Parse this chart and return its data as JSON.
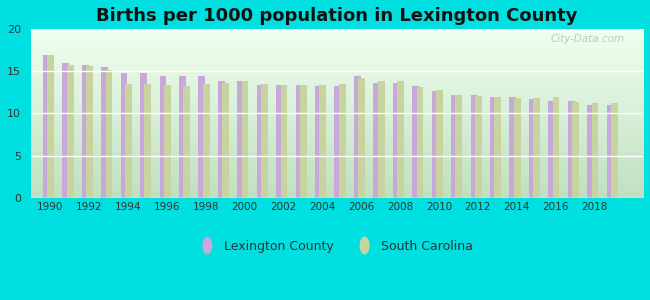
{
  "title": "Births per 1000 population in Lexington County",
  "years": [
    1990,
    1991,
    1992,
    1993,
    1994,
    1995,
    1996,
    1997,
    1998,
    1999,
    2000,
    2001,
    2002,
    2003,
    2004,
    2005,
    2006,
    2007,
    2008,
    2009,
    2010,
    2011,
    2012,
    2013,
    2014,
    2015,
    2016,
    2017,
    2018,
    2019
  ],
  "lexington": [
    17.0,
    16.0,
    15.8,
    15.5,
    14.8,
    14.8,
    14.5,
    14.4,
    14.4,
    13.8,
    13.8,
    13.4,
    13.4,
    13.4,
    13.3,
    13.3,
    14.4,
    13.6,
    13.6,
    13.3,
    12.7,
    12.2,
    12.2,
    12.0,
    11.9,
    11.7,
    11.5,
    11.5,
    11.0,
    11.0
  ],
  "south_carolina": [
    17.0,
    15.8,
    15.6,
    15.2,
    13.5,
    13.5,
    13.4,
    13.3,
    13.5,
    13.6,
    13.8,
    13.5,
    13.4,
    13.4,
    13.4,
    13.5,
    14.2,
    13.9,
    13.8,
    13.2,
    12.8,
    12.2,
    12.1,
    12.0,
    11.8,
    11.8,
    12.0,
    11.3,
    11.2,
    11.2
  ],
  "lexington_color": "#c8a8d8",
  "sc_color": "#c8d4a0",
  "background_plot_top": "#ffffff",
  "background_plot_bottom": "#c8e8c8",
  "background_fig": "#00e0e0",
  "title_fontsize": 13,
  "ylim": [
    0,
    20
  ],
  "yticks": [
    0,
    5,
    10,
    15,
    20
  ],
  "bar_width": 0.35,
  "bar_gap": 0.05,
  "legend_labels": [
    "Lexington County",
    "South Carolina"
  ],
  "watermark": "City-Data.com"
}
